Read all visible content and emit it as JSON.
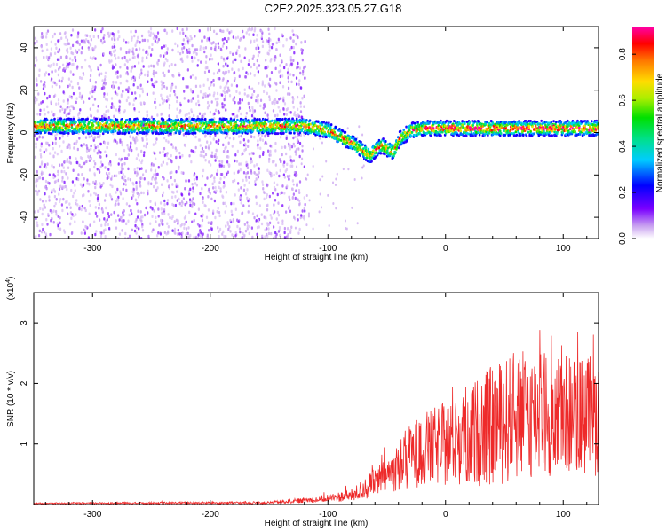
{
  "title": "C2E2.2025.323.05.27.G18",
  "colors": {
    "snr_line": "#ee2a2a",
    "axis": "#000000",
    "scatter": "#8a2be2"
  },
  "chart_data": [
    {
      "type": "heatmap",
      "name": "spectrogram",
      "xlabel": "Height of straight line (km)",
      "ylabel": "Frequency (Hz)",
      "xlim": [
        -350,
        130
      ],
      "ylim": [
        -50,
        50
      ],
      "xticks": [
        -300,
        -200,
        -100,
        0,
        100
      ],
      "xtick_labels": [
        "-300",
        "-200",
        "-100",
        "0",
        "100"
      ],
      "yticks": [
        -40,
        -20,
        0,
        20,
        40
      ],
      "ytick_labels": [
        "-40",
        "-20",
        "0",
        "20",
        "40"
      ],
      "colorbar": {
        "label": "Normalized spectral amplitude",
        "range": [
          0,
          0.92
        ],
        "ticks": [
          0.0,
          0.2,
          0.4,
          0.6,
          0.8
        ],
        "tick_labels": [
          "0.0",
          "0.2",
          "0.4",
          "0.6",
          "0.8"
        ]
      },
      "band_center": [
        [
          -350,
          3
        ],
        [
          -300,
          3
        ],
        [
          -250,
          3
        ],
        [
          -200,
          3
        ],
        [
          -150,
          3
        ],
        [
          -120,
          3
        ],
        [
          -100,
          1
        ],
        [
          -90,
          -2
        ],
        [
          -80,
          -5
        ],
        [
          -70,
          -9
        ],
        [
          -65,
          -11
        ],
        [
          -60,
          -8
        ],
        [
          -55,
          -6
        ],
        [
          -50,
          -8
        ],
        [
          -45,
          -9
        ],
        [
          -40,
          -3
        ],
        [
          -30,
          1
        ],
        [
          -20,
          2
        ],
        [
          0,
          2
        ],
        [
          50,
          2
        ],
        [
          100,
          2
        ],
        [
          130,
          2
        ]
      ],
      "band_halfwidth_hz": 3.5,
      "noise_region_xmax": -130
    },
    {
      "type": "line",
      "name": "snr",
      "xlabel": "Height of straight line (km)",
      "ylabel": "SNR (10 * v/v)",
      "multiplier_label": "(x10",
      "multiplier_exp": "4",
      "multiplier_close": ")",
      "xlim": [
        -350,
        130
      ],
      "ylim": [
        0,
        3.5
      ],
      "xticks": [
        -300,
        -200,
        -100,
        0,
        100
      ],
      "xtick_labels": [
        "-300",
        "-200",
        "-100",
        "0",
        "100"
      ],
      "yticks": [
        1,
        2,
        3
      ],
      "ytick_labels": [
        "1",
        "2",
        "3"
      ],
      "envelope": [
        [
          -350,
          0.02
        ],
        [
          -150,
          0.03
        ],
        [
          -110,
          0.08
        ],
        [
          -80,
          0.15
        ],
        [
          -60,
          0.35
        ],
        [
          -45,
          0.55
        ],
        [
          -30,
          0.8
        ],
        [
          -20,
          0.9
        ],
        [
          0,
          1.0
        ],
        [
          20,
          1.15
        ],
        [
          40,
          1.3
        ],
        [
          60,
          1.45
        ],
        [
          80,
          1.5
        ],
        [
          100,
          1.5
        ],
        [
          130,
          1.45
        ]
      ],
      "amplitude_envelope": [
        [
          -350,
          0.01
        ],
        [
          -150,
          0.02
        ],
        [
          -110,
          0.05
        ],
        [
          -80,
          0.1
        ],
        [
          -60,
          0.25
        ],
        [
          -45,
          0.35
        ],
        [
          -30,
          0.55
        ],
        [
          -20,
          0.6
        ],
        [
          0,
          0.7
        ],
        [
          20,
          0.85
        ],
        [
          40,
          1.0
        ],
        [
          60,
          1.1
        ],
        [
          80,
          1.05
        ],
        [
          100,
          1.0
        ],
        [
          130,
          1.0
        ]
      ]
    }
  ]
}
